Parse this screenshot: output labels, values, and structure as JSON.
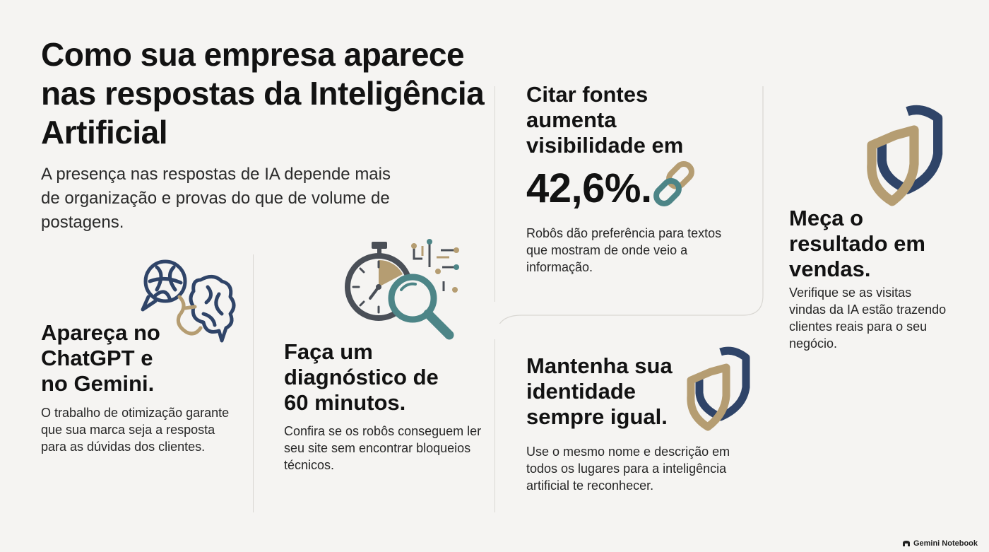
{
  "header": {
    "title": "Como sua empresa aparece nas respostas da Inteligência Artificial",
    "subtitle": "A presença nas respostas de IA depende mais de organização e provas do que de volume de postagens."
  },
  "cards": [
    {
      "title": "Apareça no ChatGPT e no Gemini.",
      "text": "O trabalho de otimização garante que sua marca seja a resposta para as dúvidas dos clientes.",
      "icon": "ai-brain-icon"
    },
    {
      "title": "Faça um diagnóstico de 60 minutos.",
      "text": "Confira se os robôs conseguem ler seu site sem encontrar bloqueios técnicos.",
      "icon": "stopwatch-magnifier-icon"
    },
    {
      "title": "Citar fontes aumenta visibilidade em",
      "stat": "42,6%.",
      "text": "Robôs dão preferência para textos que mostram de onde veio a informação.",
      "icon": "chain-link-icon"
    },
    {
      "title": "Mantenha sua identidade sempre igual.",
      "text": "Use o mesmo nome e descrição em todos os lugares para a inteligência artificial te reconhecer.",
      "icon": "shield-icon"
    },
    {
      "title": "Meça o resultado em vendas.",
      "text": "Verifique se as visitas vindas da IA estão trazendo clientes reais para o seu negócio.",
      "icon": "shield-icon"
    }
  ],
  "footer": {
    "brand": "Gemini Notebook",
    "icon": "notebook-logo-icon"
  },
  "colors": {
    "navy": "#2f4468",
    "gold": "#b59d72",
    "teal": "#4d8587",
    "gray": "#4a4f57",
    "background": "#f5f4f2"
  }
}
